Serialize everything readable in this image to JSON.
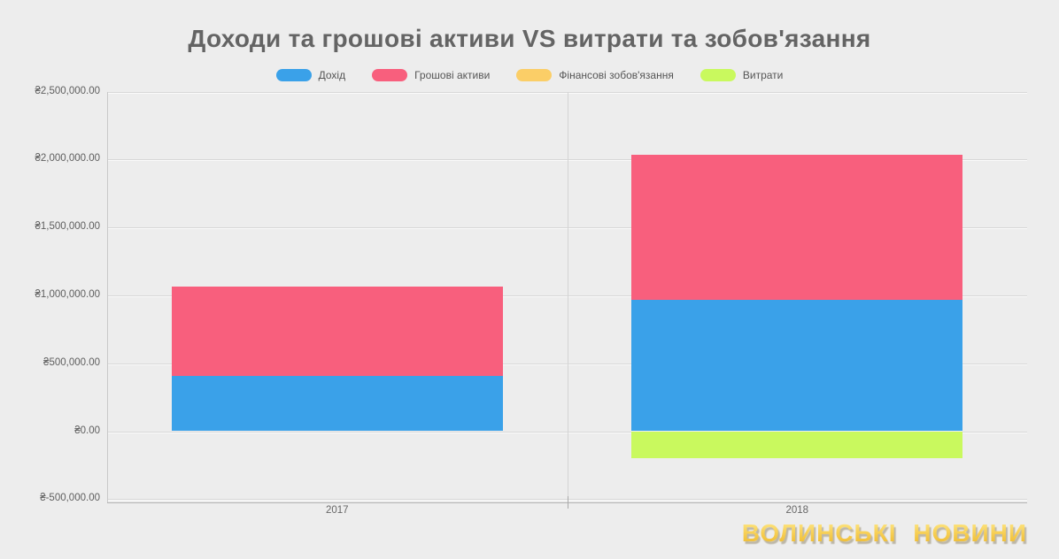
{
  "title": "Доходи та грошові активи VS витрати та зобов'язання",
  "watermark": "ВОЛИНСЬКІ НОВИНИ",
  "colors": {
    "background": "#ededed",
    "gridline": "#d7d7d7",
    "axis_line": "#b3b3b3",
    "title_text": "#646464",
    "axis_text": "#5e5e5e",
    "legend_text": "#555555",
    "watermark_gold": "#f3c83f"
  },
  "chart_data": {
    "type": "bar",
    "stacked": true,
    "title": "Доходи та грошові активи VS витрати та зобов'язання",
    "categories": [
      "2017",
      "2018"
    ],
    "series": [
      {
        "name": "Дохід",
        "color": "#3aa1e9",
        "values": [
          405000,
          965000
        ]
      },
      {
        "name": "Грошові активи",
        "color": "#f85f7d",
        "values": [
          660000,
          1070000
        ]
      },
      {
        "name": "Фінансові зобов'язання",
        "color": "#fbce67",
        "values": [
          0,
          0
        ]
      },
      {
        "name": "Витрати",
        "color": "#c9f95e",
        "values": [
          0,
          -200000
        ]
      }
    ],
    "xlabel": "",
    "ylabel": "",
    "ylim": [
      -500000,
      2500000
    ],
    "ytick_step": 500000,
    "yticks": [
      {
        "value": 2500000,
        "label": "₴2,500,000.00"
      },
      {
        "value": 2000000,
        "label": "₴2,000,000.00"
      },
      {
        "value": 1500000,
        "label": "₴1,500,000.00"
      },
      {
        "value": 1000000,
        "label": "₴1,000,000.00"
      },
      {
        "value": 500000,
        "label": "₴500,000.00"
      },
      {
        "value": 0,
        "label": "₴0.00"
      },
      {
        "value": -500000,
        "label": "₴-500,000.00"
      }
    ],
    "legend_position": "top",
    "grid": true,
    "currency": "₴"
  }
}
